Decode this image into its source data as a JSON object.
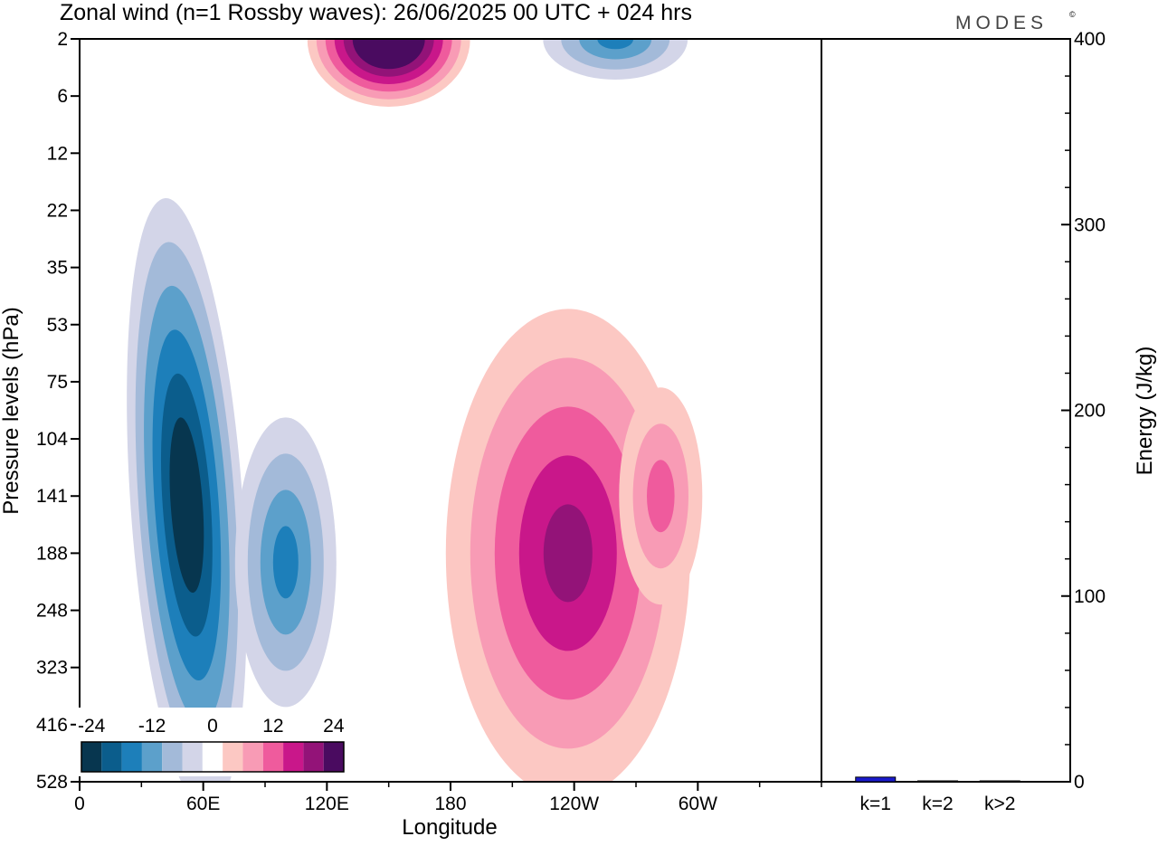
{
  "title": "Zonal wind (n=1 Rossby waves):  26/06/2025  00 UTC  + 024 hrs",
  "logo": {
    "text": "MODES",
    "mark": "©"
  },
  "chart_data": [
    {
      "type": "heatmap",
      "title": "Zonal wind (n=1 Rossby waves):  26/06/2025  00 UTC  + 024 hrs",
      "xlabel": "Longitude",
      "ylabel": "Pressure levels (hPa)",
      "x_range_deg": [
        0,
        360
      ],
      "xticks": [
        {
          "lon": 0,
          "label": "0"
        },
        {
          "lon": 60,
          "label": "60E"
        },
        {
          "lon": 120,
          "label": "120E"
        },
        {
          "lon": 180,
          "label": "180"
        },
        {
          "lon": 240,
          "label": "120W"
        },
        {
          "lon": 300,
          "label": "60W"
        }
      ],
      "x_minor_every_deg": 30,
      "y_levels": [
        "2",
        "6",
        "12",
        "22",
        "35",
        "53",
        "75",
        "104",
        "141",
        "188",
        "248",
        "323",
        "416",
        "528"
      ],
      "y_scale": "pressure levels (equally spaced, top to bottom)",
      "colorbar": {
        "tick_labels": [
          "-24",
          "-12",
          "0",
          "12",
          "24"
        ],
        "colors": [
          "#07364f",
          "#0b5d8c",
          "#1d7fba",
          "#5ca0cb",
          "#a3bad9",
          "#d3d5e8",
          "#ffffff",
          "#fcc8c3",
          "#f89bb5",
          "#ef5b9d",
          "#c9178a",
          "#931378",
          "#4a0b60"
        ]
      },
      "features": [
        {
          "sign": "negative",
          "center_lon": 52,
          "center_level": "141",
          "peak": -21
        },
        {
          "sign": "negative",
          "center_lon": 100,
          "center_level": "188",
          "peak": -12
        },
        {
          "sign": "positive",
          "center_lon": 237,
          "center_level": "188",
          "peak": 15
        },
        {
          "sign": "positive",
          "center_lon": 282,
          "center_level": "141",
          "peak": 9
        },
        {
          "sign": "positive",
          "center_lon": 150,
          "center_level": "2",
          "peak": 27
        },
        {
          "sign": "negative",
          "center_lon": 260,
          "center_level": "2",
          "peak": -12
        }
      ]
    },
    {
      "type": "bar",
      "ylabel": "Energy (J/kg)",
      "ylim": [
        0,
        400
      ],
      "yticks": [
        "0",
        "100",
        "200",
        "300",
        "400"
      ],
      "categories": [
        "k=1",
        "k=2",
        "k>2"
      ],
      "values": [
        2.5,
        0.4,
        0.4
      ],
      "bar_color": "#1a1acd"
    }
  ]
}
